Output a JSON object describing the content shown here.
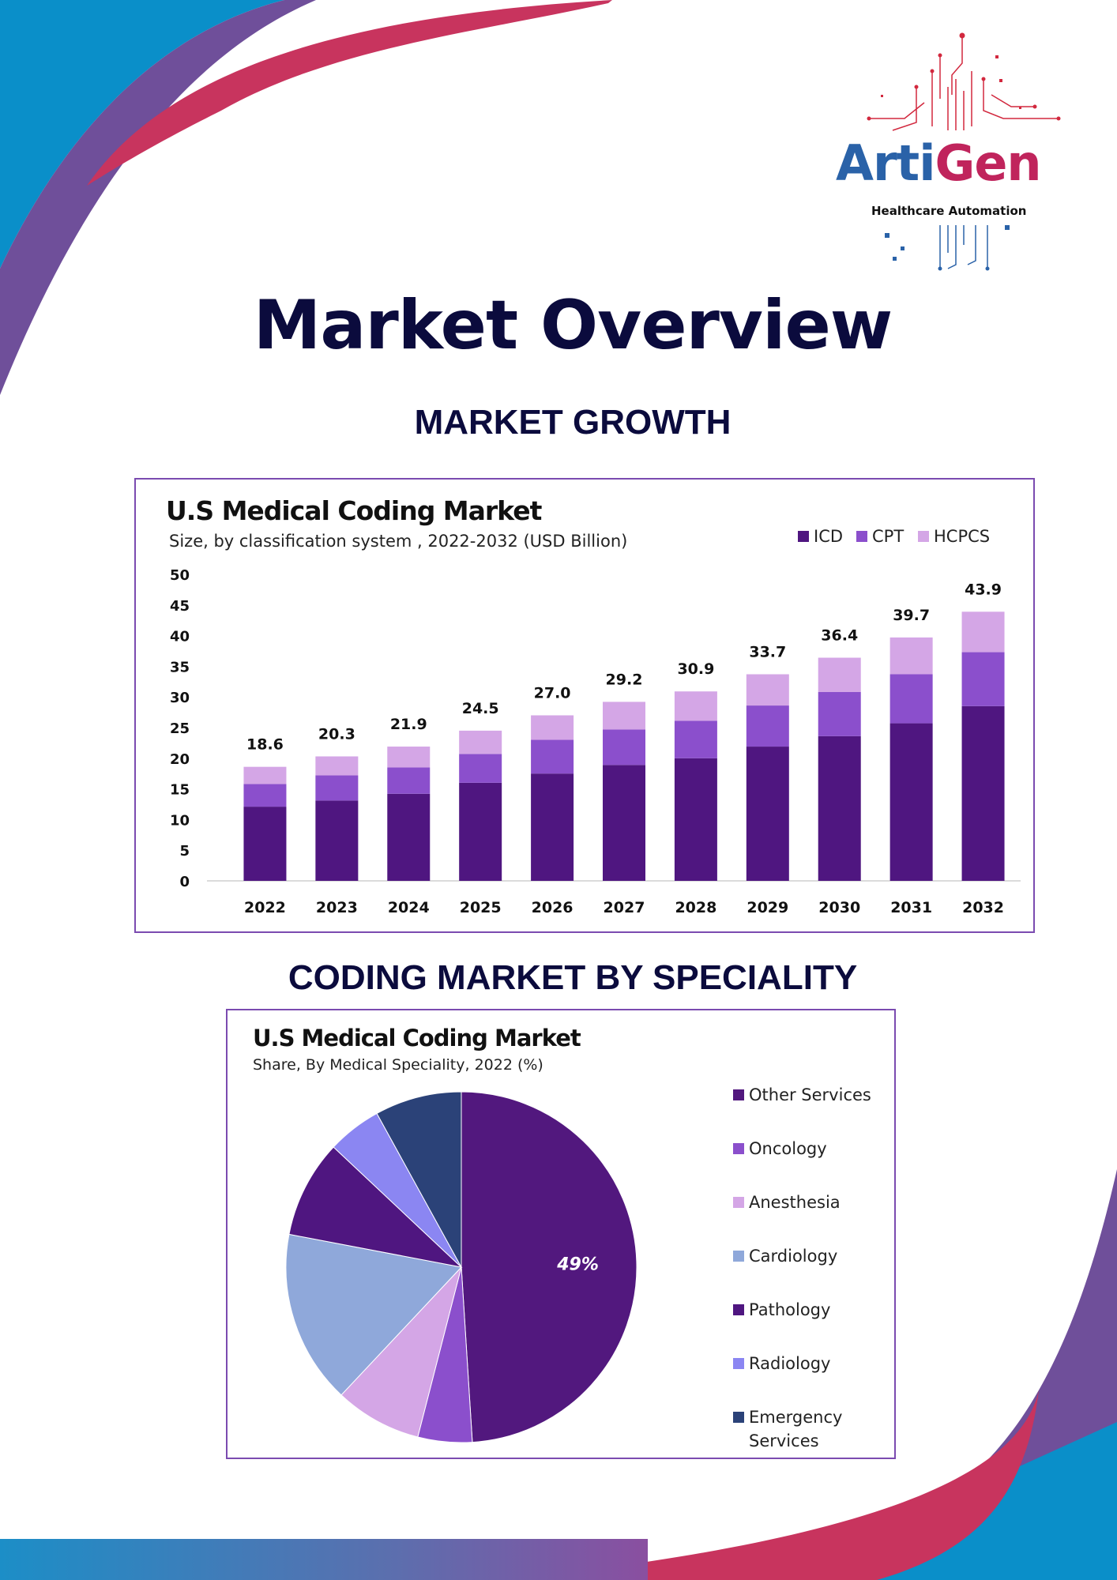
{
  "brand": {
    "name_part1": "Arti",
    "name_part2": "Gen",
    "tagline": "Healthcare Automation",
    "color_blue": "#2a62a8",
    "color_magenta": "#c0245c"
  },
  "page": {
    "title": "Market Overview",
    "section_growth": "MARKET GROWTH",
    "section_speciality": "CODING MARKET BY SPECIALITY"
  },
  "colors": {
    "decor_blue": "#0a8fc9",
    "decor_crimson": "#c8345e",
    "decor_purple": "#6f4f9a",
    "frame": "#7b4bb0",
    "heading": "#0b0b3d"
  },
  "chart_data": [
    {
      "type": "bar",
      "stacked": true,
      "title": "U.S Medical Coding Market",
      "subtitle": "Size, by classification system , 2022-2032 (USD Billion)",
      "categories": [
        "2022",
        "2023",
        "2024",
        "2025",
        "2026",
        "2027",
        "2028",
        "2029",
        "2030",
        "2031",
        "2032"
      ],
      "series": [
        {
          "name": "ICD",
          "color": "#4f1680",
          "values": [
            12.1,
            13.1,
            14.2,
            16.0,
            17.5,
            18.9,
            20.0,
            21.9,
            23.6,
            25.7,
            28.5
          ]
        },
        {
          "name": "CPT",
          "color": "#8b4fcc",
          "values": [
            3.7,
            4.1,
            4.3,
            4.7,
            5.5,
            5.8,
            6.1,
            6.7,
            7.2,
            8.0,
            8.8
          ]
        },
        {
          "name": "HCPCS",
          "color": "#d4a6e6",
          "values": [
            2.8,
            3.1,
            3.4,
            3.8,
            4.0,
            4.5,
            4.8,
            5.1,
            5.6,
            6.0,
            6.6
          ]
        }
      ],
      "totals": [
        "18.6",
        "20.3",
        "21.9",
        "24.5",
        "27.0",
        "29.2",
        "30.9",
        "33.7",
        "36.4",
        "39.7",
        "43.9"
      ],
      "ylim": [
        0,
        50
      ],
      "yticks": [
        "0",
        "5",
        "10",
        "15",
        "20",
        "25",
        "30",
        "35",
        "40",
        "45",
        "50"
      ],
      "legend": "top-right",
      "grid": false
    },
    {
      "type": "pie",
      "title": "U.S Medical Coding Market",
      "subtitle": "Share, By Medical Speciality, 2022 (%)",
      "slices": [
        {
          "label": "Other Services",
          "value": 49,
          "color": "#52187e"
        },
        {
          "label": "Oncology",
          "value": 5,
          "color": "#8b4fcc"
        },
        {
          "label": "Anesthesia",
          "value": 8,
          "color": "#d4a6e6"
        },
        {
          "label": "Cardiology",
          "value": 16,
          "color": "#8fa8da"
        },
        {
          "label": "Pathology",
          "value": 9,
          "color": "#4f1680"
        },
        {
          "label": "Radiology",
          "value": 5,
          "color": "#8b86f2"
        },
        {
          "label": "Emergency Services",
          "value": 8,
          "color": "#2b4278"
        }
      ],
      "legend_labels": [
        [
          "Other Services"
        ],
        [
          "Oncology"
        ],
        [
          "Anesthesia"
        ],
        [
          "Cardiology"
        ],
        [
          "Pathology"
        ],
        [
          "Radiology"
        ],
        [
          "Emergency",
          "Services"
        ]
      ],
      "data_label": "49%",
      "legend": "right"
    }
  ]
}
